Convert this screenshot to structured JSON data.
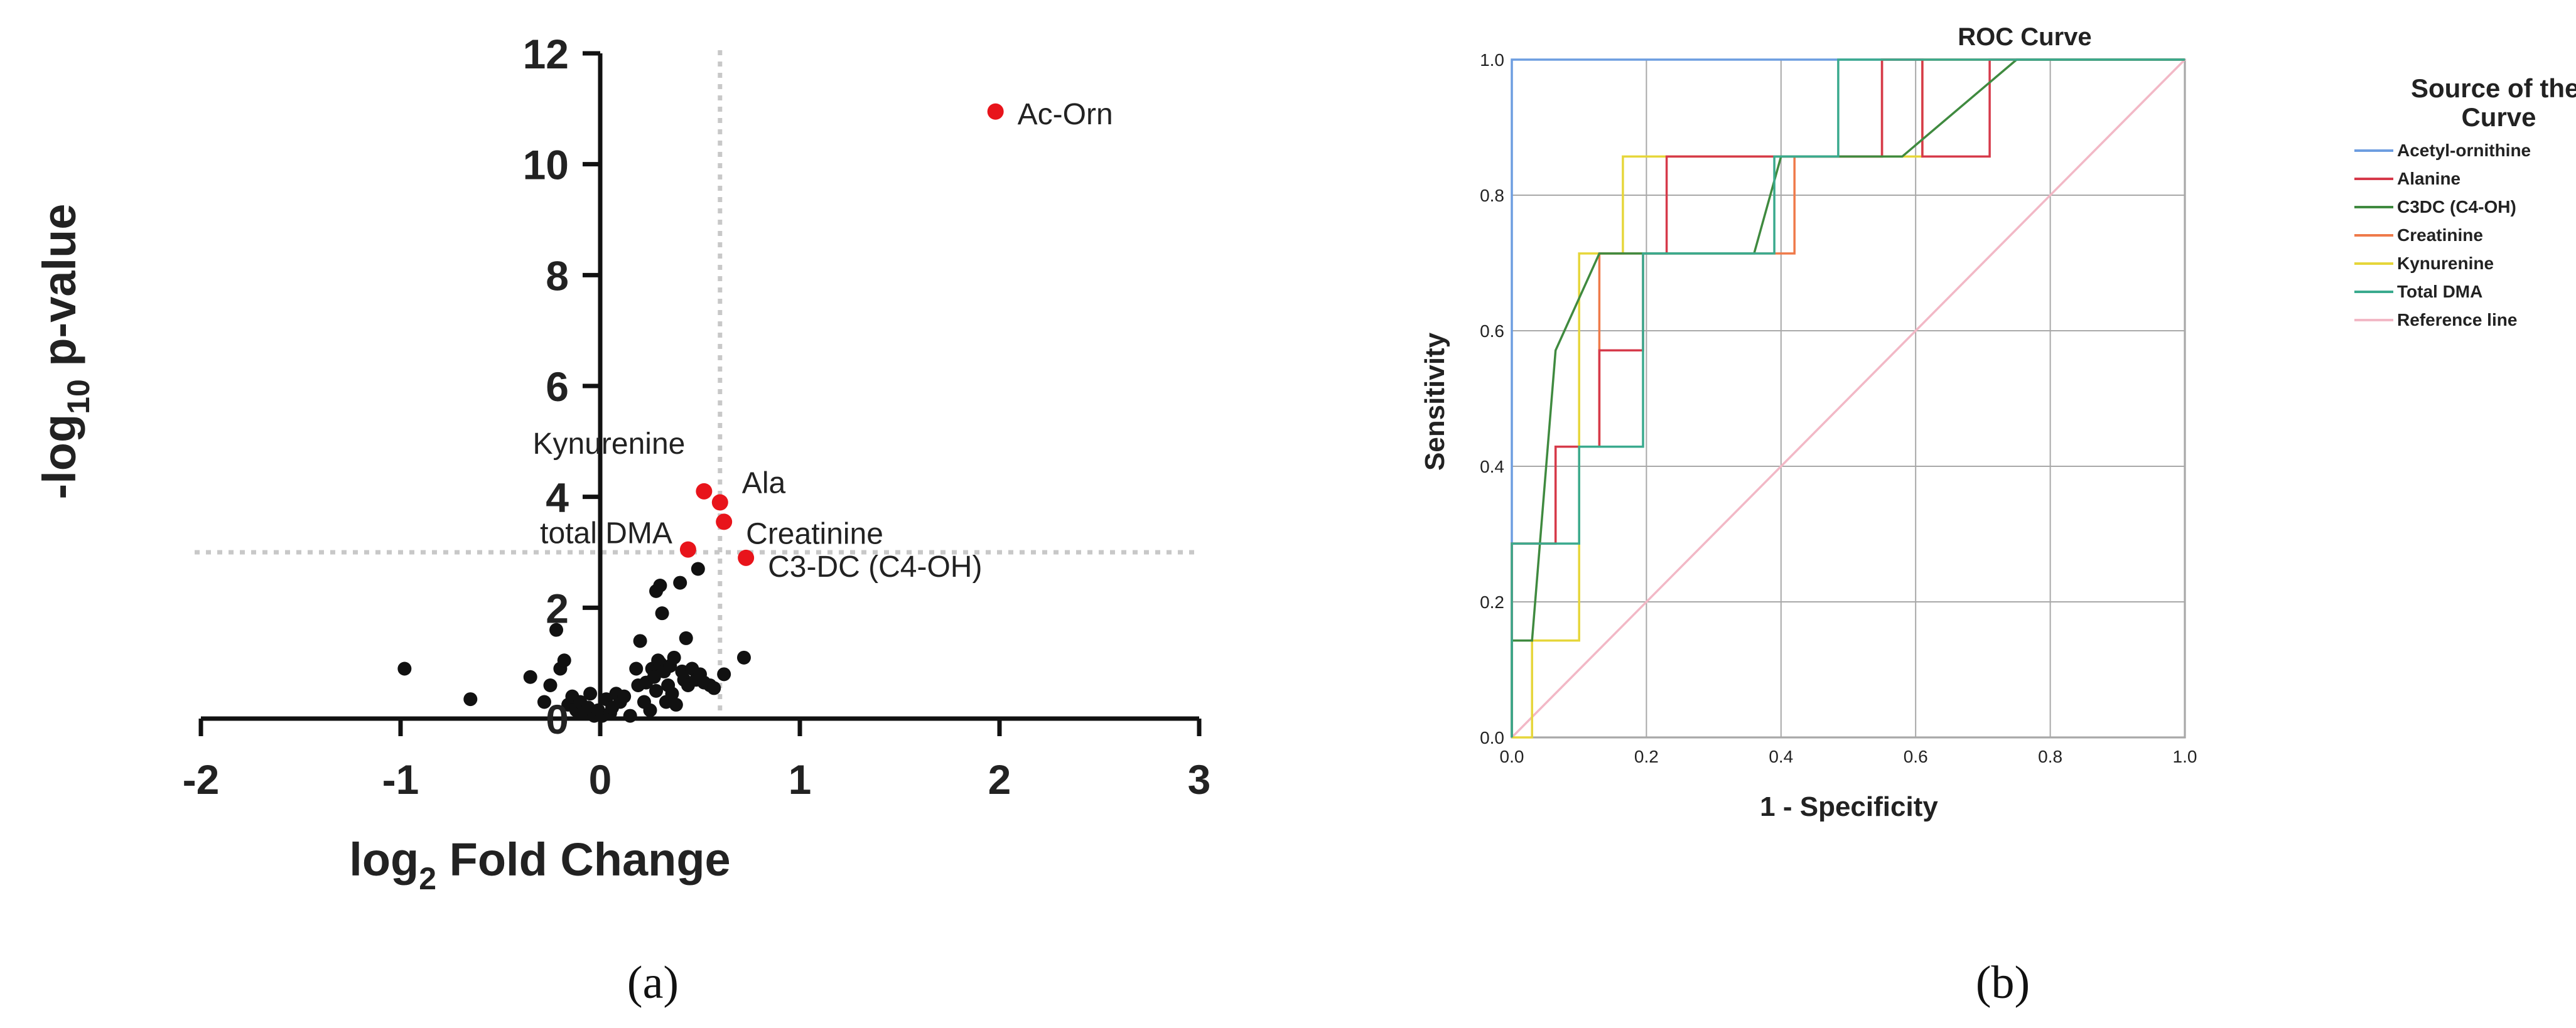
{
  "chart_data": [
    {
      "type": "scatter",
      "panel_label": "(a)",
      "xlabel_main": "log",
      "xlabel_sub": "2",
      "xlabel_rest": " Fold Change",
      "ylabel_main": "-log",
      "ylabel_sub": "10",
      "ylabel_rest": " p-value",
      "xlim": [
        -2,
        3
      ],
      "ylim": [
        0,
        12
      ],
      "xticks": [
        "-2",
        "-1",
        "0",
        "1",
        "2",
        "3"
      ],
      "yticks": [
        "0",
        "2",
        "4",
        "6",
        "8",
        "10",
        "12"
      ],
      "threshold_x": 0.6,
      "threshold_y": 3.0,
      "highlight_color": "#e8141b",
      "point_color": "#111111",
      "significant": [
        {
          "label": "Ac-Orn",
          "x": 1.98,
          "y": 10.95
        },
        {
          "label": "Kynurenine",
          "x": 0.52,
          "y": 4.1
        },
        {
          "label": "Ala",
          "x": 0.6,
          "y": 3.9
        },
        {
          "label": "Creatinine",
          "x": 0.62,
          "y": 3.55
        },
        {
          "label": "total DMA",
          "x": 0.44,
          "y": 3.05
        },
        {
          "label": "C3-DC (C4-OH)",
          "x": 0.73,
          "y": 2.9
        }
      ],
      "points": [
        [
          -0.98,
          0.9
        ],
        [
          -0.65,
          0.35
        ],
        [
          -0.35,
          0.75
        ],
        [
          -0.28,
          0.3
        ],
        [
          -0.25,
          0.6
        ],
        [
          -0.22,
          1.6
        ],
        [
          -0.2,
          0.9
        ],
        [
          -0.18,
          1.05
        ],
        [
          -0.16,
          0.25
        ],
        [
          -0.14,
          0.4
        ],
        [
          -0.12,
          0.15
        ],
        [
          -0.1,
          0.3
        ],
        [
          -0.08,
          0.1
        ],
        [
          -0.06,
          0.2
        ],
        [
          -0.05,
          0.45
        ],
        [
          -0.03,
          0.05
        ],
        [
          -0.01,
          0.15
        ],
        [
          0.01,
          0.05
        ],
        [
          0.03,
          0.35
        ],
        [
          0.05,
          0.1
        ],
        [
          0.06,
          0.2
        ],
        [
          0.08,
          0.45
        ],
        [
          0.1,
          0.3
        ],
        [
          0.12,
          0.4
        ],
        [
          0.15,
          0.05
        ],
        [
          0.18,
          0.9
        ],
        [
          0.19,
          0.6
        ],
        [
          0.2,
          1.4
        ],
        [
          0.22,
          0.3
        ],
        [
          0.23,
          0.65
        ],
        [
          0.25,
          0.15
        ],
        [
          0.26,
          0.9
        ],
        [
          0.27,
          0.75
        ],
        [
          0.28,
          0.5
        ],
        [
          0.28,
          2.3
        ],
        [
          0.29,
          1.05
        ],
        [
          0.3,
          2.4
        ],
        [
          0.3,
          1.0
        ],
        [
          0.31,
          1.9
        ],
        [
          0.32,
          0.85
        ],
        [
          0.33,
          0.3
        ],
        [
          0.34,
          0.6
        ],
        [
          0.35,
          0.95
        ],
        [
          0.36,
          0.45
        ],
        [
          0.37,
          1.1
        ],
        [
          0.38,
          0.25
        ],
        [
          0.4,
          2.45
        ],
        [
          0.41,
          0.85
        ],
        [
          0.42,
          0.7
        ],
        [
          0.43,
          1.45
        ],
        [
          0.44,
          0.6
        ],
        [
          0.46,
          0.9
        ],
        [
          0.48,
          0.7
        ],
        [
          0.49,
          2.7
        ],
        [
          0.5,
          0.8
        ],
        [
          0.52,
          0.65
        ],
        [
          0.55,
          0.6
        ],
        [
          0.57,
          0.55
        ],
        [
          0.62,
          0.8
        ],
        [
          0.72,
          1.1
        ]
      ]
    },
    {
      "type": "line",
      "panel_label": "(b)",
      "title": "ROC Curve",
      "xlabel": "1 - Specificity",
      "ylabel": "Sensitivity",
      "xlim": [
        0,
        1
      ],
      "ylim": [
        0,
        1
      ],
      "xticks": [
        "0.0",
        "0.2",
        "0.4",
        "0.6",
        "0.8",
        "1.0"
      ],
      "yticks": [
        "0.0",
        "0.2",
        "0.4",
        "0.6",
        "0.8",
        "1.0"
      ],
      "grid": true,
      "legend_title": "Source of the Curve",
      "legend_placement": "right",
      "series": [
        {
          "name": "Acetyl-ornithine",
          "color": "#6d9de0",
          "x": [
            0,
            0,
            1
          ],
          "y": [
            0,
            1,
            1
          ]
        },
        {
          "name": "Alanine",
          "color": "#d63a4a",
          "x": [
            0,
            0,
            0.065,
            0.065,
            0.13,
            0.13,
            0.195,
            0.195,
            0.23,
            0.23,
            0.55,
            0.55,
            0.61,
            0.61,
            0.71,
            0.71,
            1
          ],
          "y": [
            0,
            0.286,
            0.286,
            0.429,
            0.429,
            0.571,
            0.571,
            0.714,
            0.714,
            0.857,
            0.857,
            1.0,
            1.0,
            0.857,
            0.857,
            1.0,
            1.0
          ]
        },
        {
          "name": "C3DC (C4-OH)",
          "color": "#3f8a3f",
          "x": [
            0,
            0,
            0.03,
            0.065,
            0.065,
            0.13,
            0.13,
            0.195,
            0.195,
            0.36,
            0.4,
            0.58,
            0.75,
            1
          ],
          "y": [
            0,
            0.143,
            0.143,
            0.571,
            0.571,
            0.714,
            0.714,
            0.714,
            0.714,
            0.714,
            0.857,
            0.857,
            1.0,
            1.0
          ]
        },
        {
          "name": "Creatinine",
          "color": "#ef7a4a",
          "x": [
            0,
            0,
            0.065,
            0.065,
            0.13,
            0.13,
            0.195,
            0.195,
            0.36,
            0.36,
            0.42,
            0.42,
            0.55,
            0.55,
            1
          ],
          "y": [
            0,
            0.286,
            0.286,
            0.429,
            0.429,
            0.714,
            0.714,
            0.714,
            0.714,
            0.714,
            0.714,
            0.857,
            0.857,
            1.0,
            1.0
          ]
        },
        {
          "name": "Kynurenine",
          "color": "#e6d63a",
          "x": [
            0,
            0.03,
            0.03,
            0.1,
            0.1,
            0.165,
            0.165,
            0.29,
            0.29,
            0.61,
            0.61,
            1
          ],
          "y": [
            0,
            0,
            0.143,
            0.143,
            0.714,
            0.714,
            0.857,
            0.857,
            0.857,
            0.857,
            1.0,
            1.0
          ]
        },
        {
          "name": "Total DMA",
          "color": "#3aaa8e",
          "x": [
            0,
            0,
            0.1,
            0.1,
            0.195,
            0.195,
            0.36,
            0.36,
            0.39,
            0.39,
            0.485,
            0.485,
            1
          ],
          "y": [
            0,
            0.286,
            0.286,
            0.429,
            0.429,
            0.714,
            0.714,
            0.714,
            0.714,
            0.857,
            0.857,
            1.0,
            1.0
          ]
        },
        {
          "name": "Reference line",
          "color": "#f2b8c6",
          "x": [
            0,
            1
          ],
          "y": [
            0,
            1
          ]
        }
      ]
    }
  ]
}
